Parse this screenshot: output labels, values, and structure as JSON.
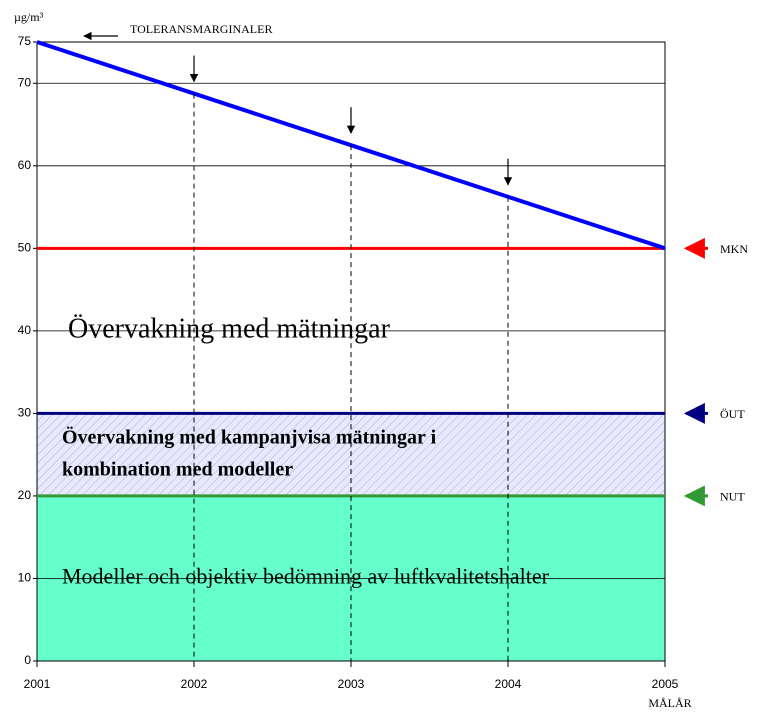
{
  "chart_data": {
    "type": "line",
    "y_label": "µg/m³",
    "x_label": "MÅLÅR",
    "x": [
      2001,
      2002,
      2003,
      2004,
      2005
    ],
    "xlim": [
      2001,
      2005
    ],
    "xticks": [
      2001,
      2002,
      2003,
      2004,
      2005
    ],
    "ylim": [
      0,
      75
    ],
    "yticks": [
      0,
      10,
      20,
      30,
      40,
      50,
      60,
      70,
      75
    ],
    "grid": true,
    "series": [
      {
        "name": "TOLERANSMARGINALER",
        "color": "#0000ff",
        "values": [
          75,
          68.75,
          62.5,
          56.25,
          50
        ]
      }
    ],
    "thresholds": [
      {
        "name": "MKN",
        "value": 50,
        "color": "#ff0000"
      },
      {
        "name": "ÖUT",
        "value": 30,
        "color": "#000080"
      },
      {
        "name": "NUT",
        "value": 20,
        "color": "#339933"
      }
    ],
    "zones": [
      {
        "lines": [
          "Övervakning med mätningar"
        ]
      },
      {
        "lines": [
          "Övervakning med kampanjvisa mätningar i",
          "kombination med modeller"
        ],
        "color": "#e8e8ff",
        "hatch": true,
        "bold": true
      },
      {
        "lines": [
          "Modeller och objektiv bedömning av luftkvalitetshalter"
        ],
        "color": "#66ffcc"
      }
    ]
  }
}
